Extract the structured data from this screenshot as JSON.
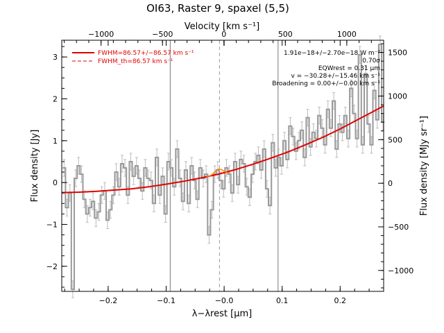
{
  "chart_data": {
    "type": "line",
    "title": "OI63, Raster 9, spaxel (5,5)",
    "xlabel": "λ−λrest [μm]",
    "ylabel": "Flux density [Jy]",
    "top_xlabel": "Velocity [km s⁻¹]",
    "right_ylabel": "Flux density [MJy sr⁻¹]",
    "xlim": [
      -0.28,
      0.275
    ],
    "ylim": [
      -2.6,
      3.4
    ],
    "right_ylim": [
      -1240,
      1640
    ],
    "top_xlim": [
      -1320,
      1300
    ],
    "xticks": [
      -0.2,
      -0.1,
      0.0,
      0.1,
      0.2
    ],
    "xtick_labels": [
      "−0.2",
      "−0.1",
      "−0.0",
      "0.1",
      "0.2"
    ],
    "yticks": [
      -2,
      -1,
      0,
      1,
      2,
      3
    ],
    "ytick_labels": [
      "−2",
      "−1",
      "0",
      "1",
      "2",
      "3"
    ],
    "right_yticks": [
      -1000,
      -500,
      0,
      500,
      1000,
      1500
    ],
    "right_ytick_labels": [
      "−1000",
      "−500",
      "0",
      "500",
      "1000",
      "1500"
    ],
    "top_xticks": [
      -1000,
      -500,
      0,
      500,
      1000
    ],
    "top_xtick_labels": [
      "−1000",
      "−500",
      "0",
      "500",
      "1000"
    ],
    "vlines": [
      -0.093,
      0.093
    ],
    "dashed_vline": -0.008,
    "legend": {
      "position": "top-left",
      "entries": [
        {
          "label": "FWHM=86.57+/−86.57 km s⁻¹",
          "style": "solid",
          "color": "#e00000"
        },
        {
          "label": "FWHM_th=86.57 km s⁻¹",
          "style": "dashed",
          "color": "#e00000"
        }
      ]
    },
    "annotations": [
      "1.91e−18+/−2.70e−18 W m⁻²",
      "0.70σ",
      "EQWrest = 0.31 μm",
      "v = −30.28+/−15.46 km s⁻¹",
      "Broadening = 0.00+/−0.00 km s⁻¹"
    ],
    "series": [
      {
        "style": "steps",
        "color": "#999999",
        "x": [
          -0.276,
          -0.271,
          -0.266,
          -0.261,
          -0.256,
          -0.251,
          -0.246,
          -0.241,
          -0.236,
          -0.231,
          -0.226,
          -0.221,
          -0.216,
          -0.211,
          -0.206,
          -0.201,
          -0.196,
          -0.191,
          -0.186,
          -0.181,
          -0.176,
          -0.171,
          -0.166,
          -0.161,
          -0.156,
          -0.151,
          -0.146,
          -0.141,
          -0.136,
          -0.131,
          -0.126,
          -0.121,
          -0.116,
          -0.111,
          -0.106,
          -0.101,
          -0.096,
          -0.091,
          -0.086,
          -0.081,
          -0.076,
          -0.071,
          -0.066,
          -0.061,
          -0.056,
          -0.051,
          -0.046,
          -0.041,
          -0.036,
          -0.031,
          -0.026,
          -0.021,
          -0.016,
          -0.011,
          -0.006,
          -0.001,
          0.004,
          0.009,
          0.014,
          0.019,
          0.024,
          0.029,
          0.034,
          0.039,
          0.044,
          0.049,
          0.054,
          0.059,
          0.064,
          0.069,
          0.074,
          0.079,
          0.084,
          0.089,
          0.094,
          0.099,
          0.104,
          0.109,
          0.114,
          0.119,
          0.124,
          0.129,
          0.134,
          0.139,
          0.144,
          0.149,
          0.154,
          0.159,
          0.164,
          0.169,
          0.174,
          0.179,
          0.184,
          0.189,
          0.194,
          0.199,
          0.204,
          0.209,
          0.214,
          0.219,
          0.224,
          0.229,
          0.234,
          0.239,
          0.244,
          0.249,
          0.254,
          0.259,
          0.264,
          0.269,
          0.274
        ],
        "y": [
          0.35,
          -0.6,
          -0.25,
          -2.55,
          0.1,
          0.4,
          0.2,
          -0.4,
          -0.75,
          -0.6,
          -0.45,
          -0.85,
          -0.7,
          -0.3,
          -0.2,
          -0.9,
          -0.65,
          -0.3,
          0.25,
          -0.1,
          0.45,
          0.35,
          -0.3,
          0.5,
          0.15,
          0.4,
          0.1,
          -0.2,
          0.35,
          0.1,
          0.05,
          -0.5,
          0.6,
          -0.3,
          0.15,
          -0.75,
          0.5,
          0.35,
          -0.1,
          0.8,
          0.1,
          -0.45,
          0.3,
          -0.5,
          0.4,
          0.05,
          -0.4,
          0.35,
          0.1,
          0.2,
          -1.25,
          -0.65,
          0.2,
          0.3,
          0.05,
          -0.15,
          0.35,
          0.2,
          -0.25,
          0.5,
          -0.05,
          0.55,
          0.45,
          -0.1,
          -0.35,
          0.2,
          0.5,
          0.65,
          0.3,
          0.8,
          -0.15,
          -0.55,
          0.95,
          0.35,
          0.6,
          0.4,
          1.0,
          0.55,
          1.35,
          1.1,
          0.75,
          1.0,
          1.25,
          0.6,
          1.55,
          0.85,
          1.2,
          1.05,
          1.6,
          1.3,
          0.9,
          1.75,
          1.3,
          1.95,
          0.8,
          1.4,
          1.2,
          1.6,
          1.05,
          2.25,
          1.65,
          1.05,
          3.05,
          0.9,
          2.6,
          1.4,
          0.9,
          2.2,
          1.5,
          3.3,
          1.45
        ],
        "yerr": 0.2
      },
      {
        "style": "line",
        "color": "#e00000",
        "x": [
          -0.28,
          -0.25,
          -0.22,
          -0.19,
          -0.16,
          -0.13,
          -0.1,
          -0.07,
          -0.04,
          -0.01,
          0.02,
          0.05,
          0.08,
          0.11,
          0.14,
          0.17,
          0.2,
          0.23,
          0.26,
          0.275
        ],
        "y": [
          -0.24,
          -0.23,
          -0.21,
          -0.18,
          -0.15,
          -0.1,
          -0.04,
          0.03,
          0.11,
          0.2,
          0.31,
          0.44,
          0.58,
          0.73,
          0.9,
          1.08,
          1.28,
          1.5,
          1.72,
          1.83
        ]
      },
      {
        "style": "line",
        "color": "#ff8000",
        "x": [
          -0.03,
          -0.025,
          -0.02,
          -0.015,
          -0.01,
          -0.005,
          0.0,
          0.005,
          0.01
        ],
        "y": [
          0.14,
          0.16,
          0.2,
          0.27,
          0.32,
          0.31,
          0.27,
          0.24,
          0.23
        ]
      }
    ]
  }
}
